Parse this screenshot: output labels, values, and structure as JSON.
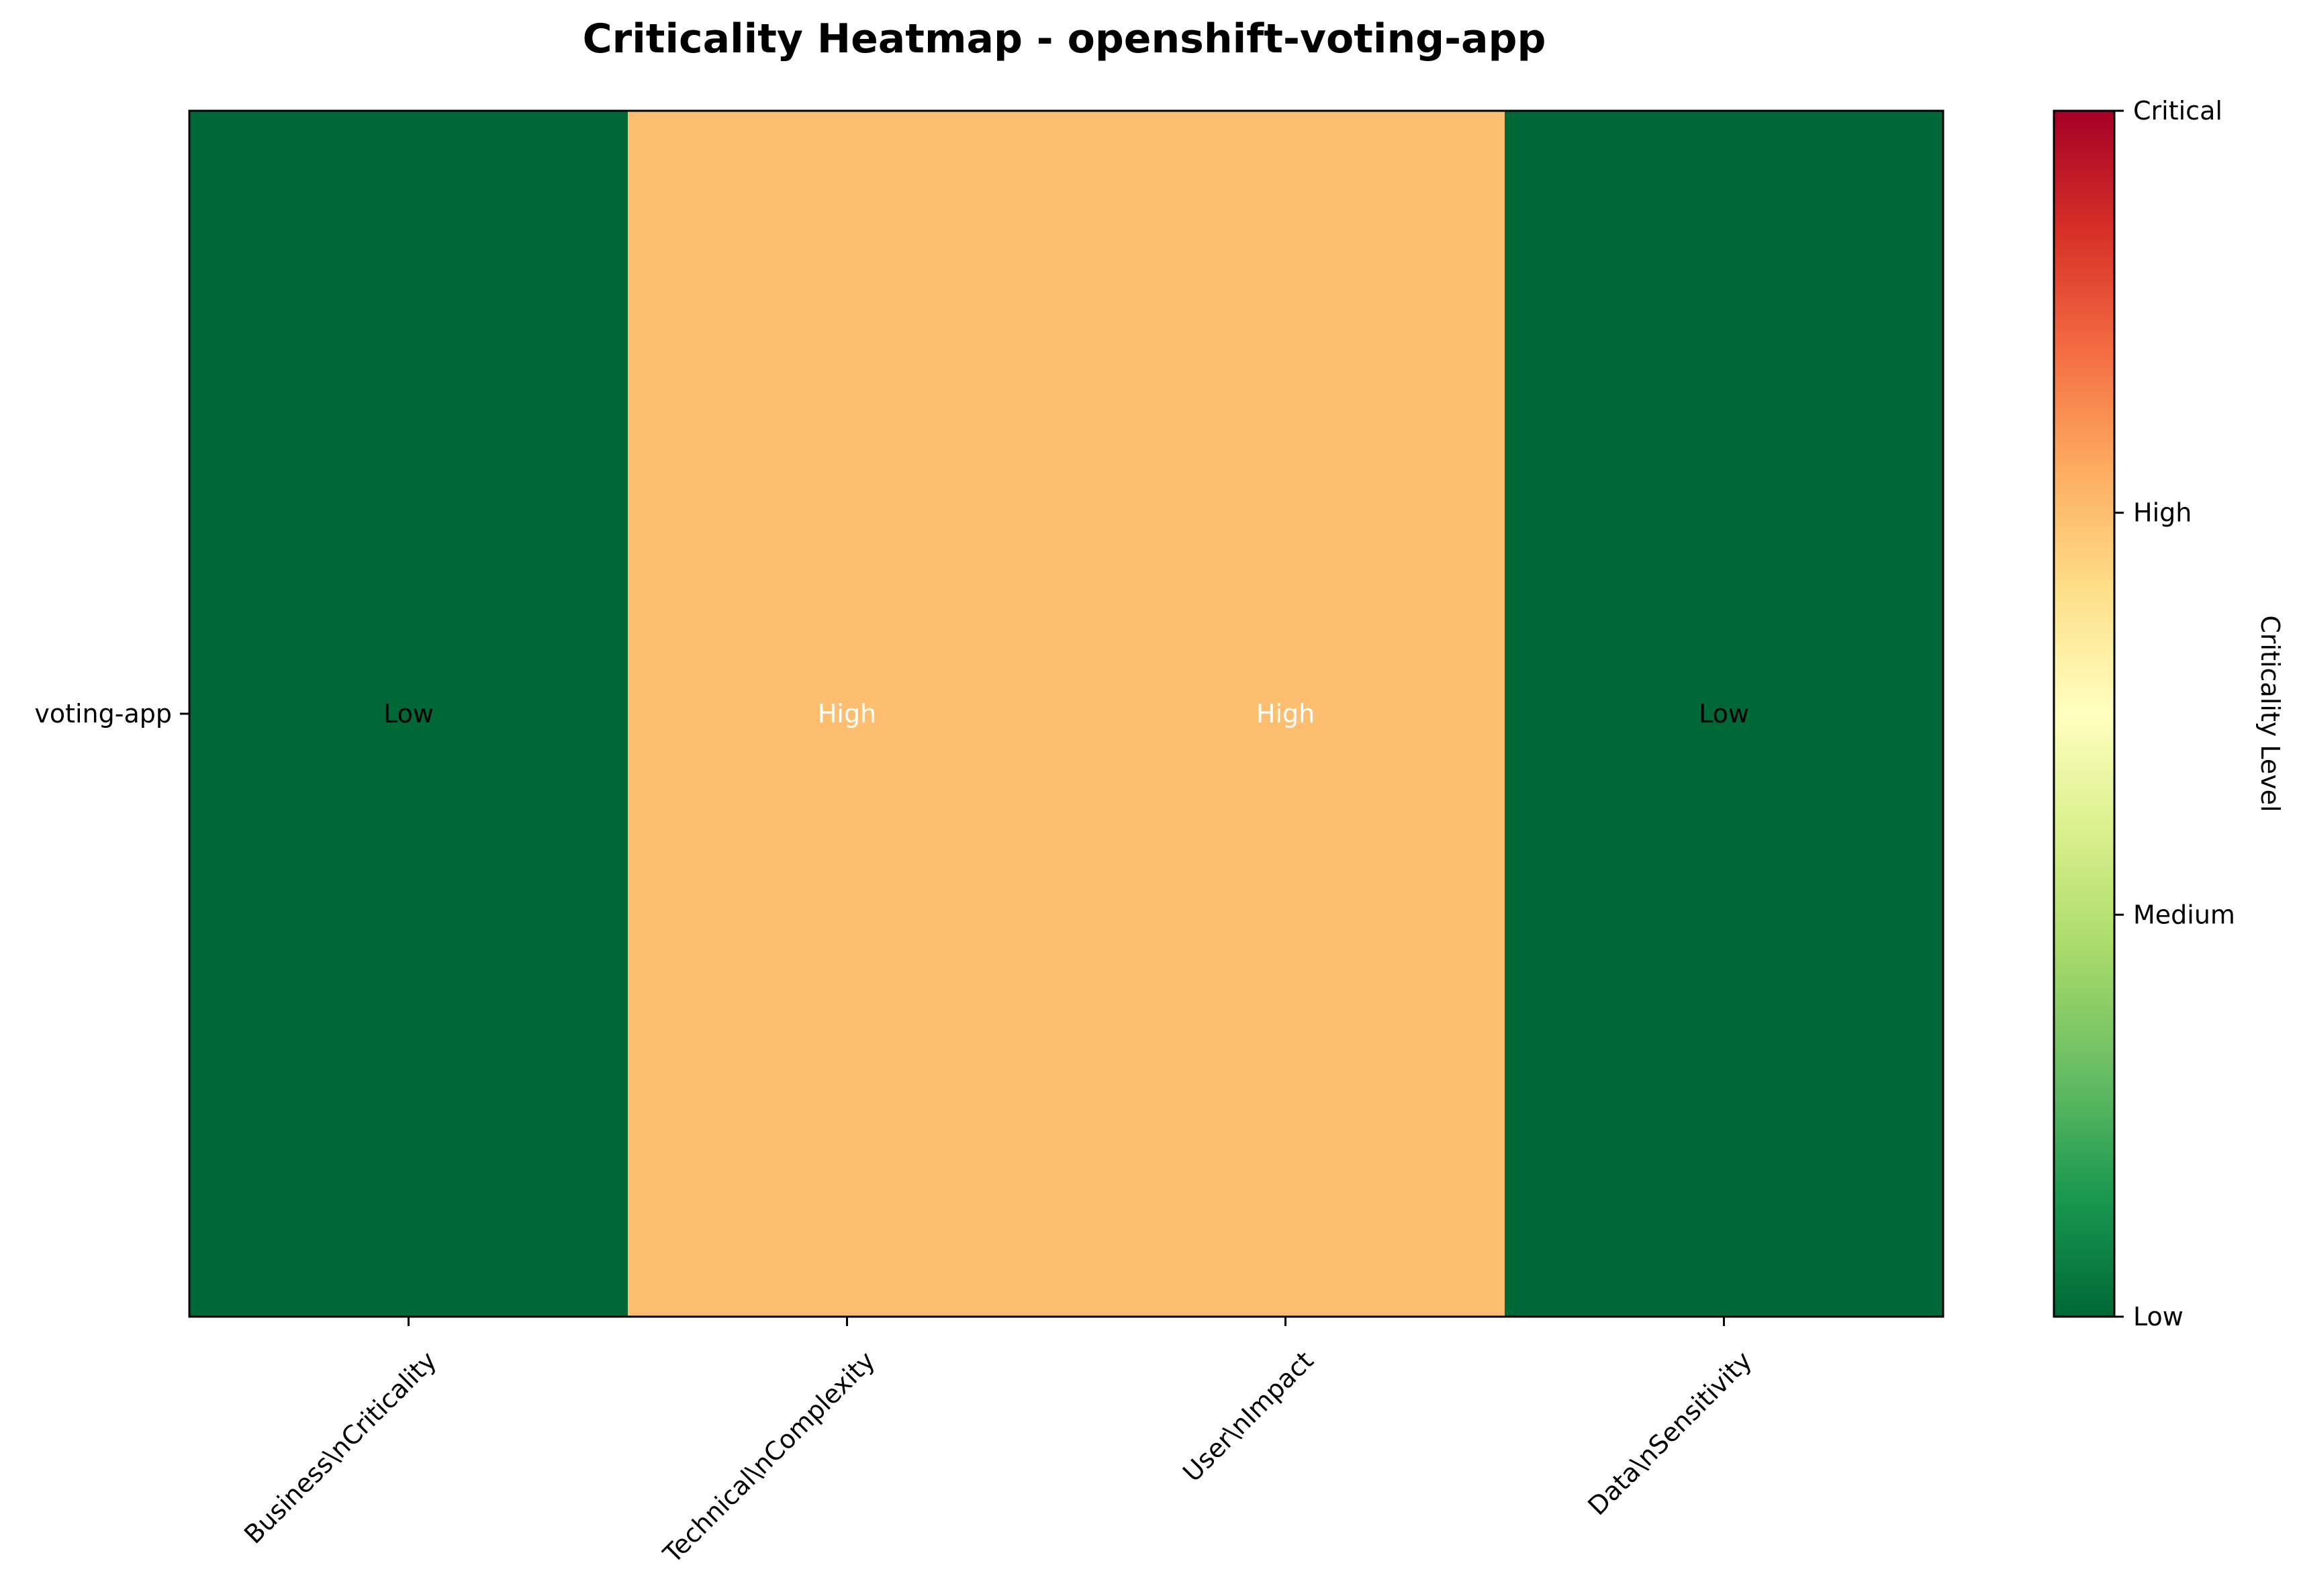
{
  "chart_data": {
    "type": "heatmap",
    "title": "Criticality Heatmap - openshift-voting-app",
    "rows": [
      "voting-app"
    ],
    "columns": [
      "Business\\nCriticality",
      "Technical\\nComplexity",
      "User\\nImpact",
      "Data\\nSensitivity"
    ],
    "values": [
      [
        1,
        3,
        3,
        1
      ]
    ],
    "cell_labels": [
      [
        "Low",
        "High",
        "High",
        "Low"
      ]
    ],
    "value_range": [
      1,
      4
    ],
    "colormap": "RdYlGn_r",
    "colorbar": {
      "label": "Criticality Level",
      "ticks": [
        {
          "value": 1,
          "label": "Low"
        },
        {
          "value": 2,
          "label": "Medium"
        },
        {
          "value": 3,
          "label": "High"
        },
        {
          "value": 4,
          "label": "Critical"
        }
      ]
    },
    "colors": {
      "low": "#006837",
      "high": "#fdbf6f",
      "frame": "#000000"
    },
    "grid": false
  }
}
